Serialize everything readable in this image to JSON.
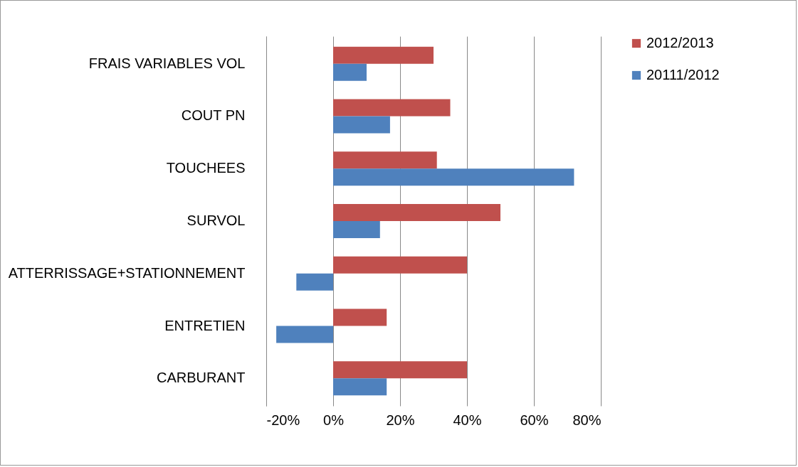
{
  "chart_data": {
    "type": "bar",
    "orientation": "horizontal",
    "categories": [
      "FRAIS VARIABLES VOL",
      "COUT PN",
      "TOUCHEES",
      "SURVOL",
      "ATTERRISSAGE+STATIONNEMENT",
      "ENTRETIEN",
      "CARBURANT"
    ],
    "series": [
      {
        "name": "2012/2013",
        "color": "#c0504d",
        "values": [
          30,
          35,
          31,
          50,
          40,
          16,
          40
        ]
      },
      {
        "name": "20111/2012",
        "color": "#4f81bd",
        "values": [
          10,
          17,
          72,
          14,
          -11,
          -17,
          16
        ]
      }
    ],
    "xlim": [
      -20,
      80
    ],
    "xticks": [
      {
        "value": -20,
        "label": "-20%"
      },
      {
        "value": 0,
        "label": "0%"
      },
      {
        "value": 20,
        "label": "20%"
      },
      {
        "value": 40,
        "label": "40%"
      },
      {
        "value": 60,
        "label": "60%"
      },
      {
        "value": 80,
        "label": "80%"
      }
    ],
    "grid": "x",
    "legend": "right"
  }
}
